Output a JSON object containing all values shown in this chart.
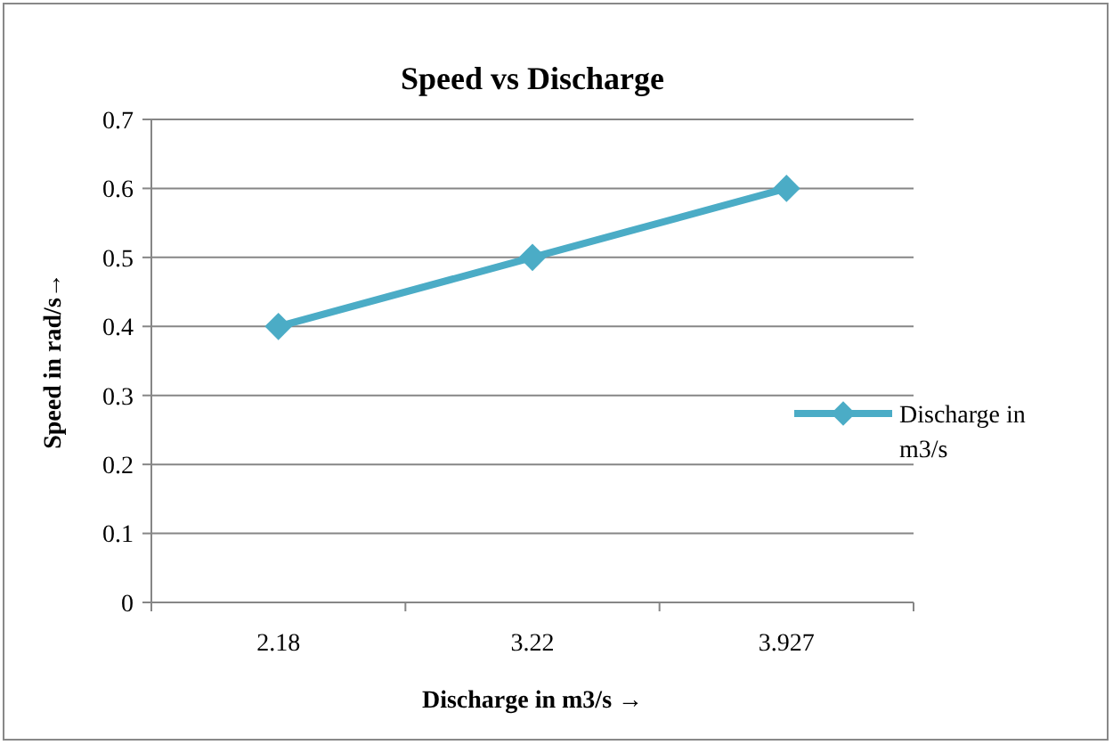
{
  "chart_data": {
    "type": "line",
    "title": "Speed vs Discharge",
    "xlabel": "Discharge in m3/s →",
    "ylabel": "Speed in rad/s→",
    "categories": [
      "2.18",
      "3.22",
      "3.927"
    ],
    "series": [
      {
        "name": "Discharge in m3/s",
        "color": "#4bacc6",
        "values": [
          0.4,
          0.5,
          0.6
        ]
      }
    ],
    "ylim": [
      0,
      0.7
    ],
    "yticks": [
      0,
      0.1,
      0.2,
      0.3,
      0.4,
      0.5,
      0.6,
      0.7
    ],
    "grid": "y",
    "legend": "right",
    "marker": "diamond",
    "line_style": "solid"
  }
}
